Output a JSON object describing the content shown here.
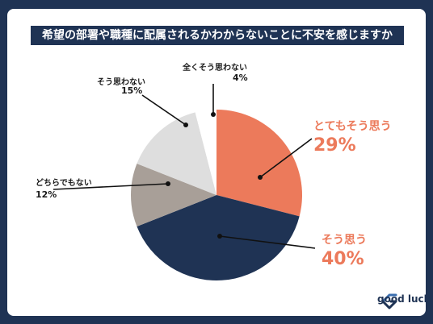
{
  "chart_data": {
    "type": "pie",
    "title": "希望の部署や職種に配属されるかわからないことに不安を感じますか",
    "slices": [
      {
        "label": "とてもそう思う",
        "value": 29,
        "display": "29%",
        "color": "#ec7a5b"
      },
      {
        "label": "そう思う",
        "value": 40,
        "display": "40%",
        "color": "#1f3354"
      },
      {
        "label": "どちらでもない",
        "value": 12,
        "display": "12%",
        "color": "#a89f98"
      },
      {
        "label": "そう思わない",
        "value": 15,
        "display": "15%",
        "color": "#dedede"
      },
      {
        "label": "全くそう思わない",
        "value": 4,
        "display": "4%",
        "color": "#ffffff"
      }
    ]
  },
  "brand": {
    "name": "good luck",
    "color": "#1f3354"
  }
}
